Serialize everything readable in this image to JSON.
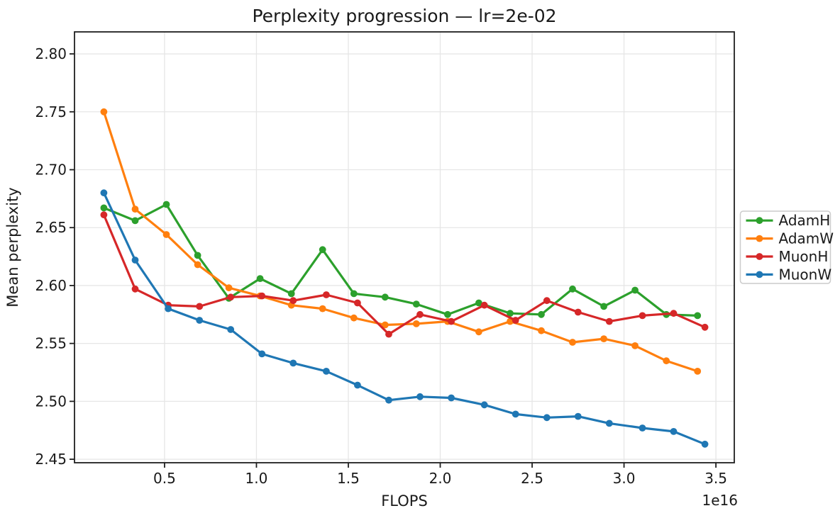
{
  "chart_data": {
    "type": "line",
    "title": "Perplexity progression — lr=2e-02",
    "xlabel": "FLOPS",
    "ylabel": "Mean perplexity",
    "x_offset_label": "1e16",
    "xlim": [
      0.01,
      3.6
    ],
    "ylim": [
      2.447,
      2.819
    ],
    "x_ticks": [
      0.5,
      1.0,
      1.5,
      2.0,
      2.5,
      3.0,
      3.5
    ],
    "y_ticks": [
      2.45,
      2.5,
      2.55,
      2.6,
      2.65,
      2.7,
      2.75,
      2.8
    ],
    "grid": true,
    "legend_position": "center-right-outside",
    "styles": {
      "grid_color": "#e6e6e6",
      "spine_color": "#1f1f1f",
      "text_color": "#1a1a1a",
      "legend_border_color": "#cccccc",
      "background_color": "#ffffff"
    },
    "series": [
      {
        "name": "AdamH",
        "color": "#2ca02c",
        "x": [
          0.17,
          0.34,
          0.51,
          0.68,
          0.85,
          1.02,
          1.19,
          1.36,
          1.53,
          1.7,
          1.87,
          2.04,
          2.21,
          2.38,
          2.55,
          2.72,
          2.89,
          3.06,
          3.23,
          3.4
        ],
        "y": [
          2.667,
          2.656,
          2.67,
          2.626,
          2.589,
          2.606,
          2.593,
          2.631,
          2.593,
          2.59,
          2.584,
          2.575,
          2.585,
          2.576,
          2.575,
          2.597,
          2.582,
          2.596,
          2.575,
          2.574
        ]
      },
      {
        "name": "AdamW",
        "color": "#ff7f0e",
        "x": [
          0.17,
          0.34,
          0.51,
          0.68,
          0.85,
          1.02,
          1.19,
          1.36,
          1.53,
          1.7,
          1.87,
          2.04,
          2.21,
          2.38,
          2.55,
          2.72,
          2.89,
          3.06,
          3.23,
          3.4
        ],
        "y": [
          2.75,
          2.666,
          2.644,
          2.618,
          2.598,
          2.591,
          2.583,
          2.58,
          2.572,
          2.566,
          2.567,
          2.569,
          2.56,
          2.569,
          2.561,
          2.551,
          2.554,
          2.548,
          2.535,
          2.526
        ]
      },
      {
        "name": "MuonH",
        "color": "#d62728",
        "x": [
          0.17,
          0.34,
          0.52,
          0.69,
          0.86,
          1.03,
          1.2,
          1.38,
          1.55,
          1.72,
          1.89,
          2.06,
          2.24,
          2.41,
          2.58,
          2.75,
          2.92,
          3.1,
          3.27,
          3.44
        ],
        "y": [
          2.661,
          2.597,
          2.583,
          2.582,
          2.59,
          2.591,
          2.587,
          2.592,
          2.585,
          2.558,
          2.575,
          2.569,
          2.583,
          2.57,
          2.587,
          2.577,
          2.569,
          2.574,
          2.576,
          2.564
        ]
      },
      {
        "name": "MuonW",
        "color": "#1f77b4",
        "x": [
          0.17,
          0.34,
          0.52,
          0.69,
          0.86,
          1.03,
          1.2,
          1.38,
          1.55,
          1.72,
          1.89,
          2.06,
          2.24,
          2.41,
          2.58,
          2.75,
          2.92,
          3.1,
          3.27,
          3.44
        ],
        "y": [
          2.68,
          2.622,
          2.58,
          2.57,
          2.562,
          2.541,
          2.533,
          2.526,
          2.514,
          2.501,
          2.504,
          2.503,
          2.497,
          2.489,
          2.486,
          2.487,
          2.481,
          2.477,
          2.474,
          2.463
        ]
      }
    ]
  }
}
